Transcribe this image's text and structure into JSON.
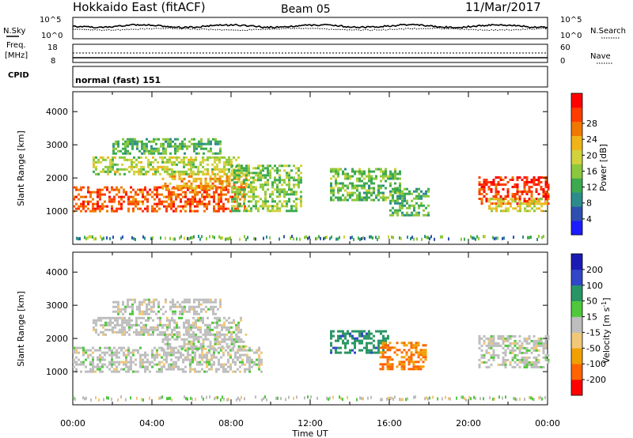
{
  "header": {
    "station": "Hokkaido East (fitACF)",
    "beam": "Beam 05",
    "date": "11/Mar/2017"
  },
  "noise_panel": {
    "left_label": "N.Sky",
    "right_label": "N.Search",
    "left_ticks": [
      "10^5",
      "10^0"
    ],
    "right_ticks": [
      "10^5",
      "10^0"
    ]
  },
  "freq_panel": {
    "label_line1": "Freq.",
    "label_line2": "[MHz]",
    "left_ticks": [
      "18",
      "8"
    ],
    "right_ticks": [
      "60",
      "0"
    ],
    "right_label": "Nave"
  },
  "cpid_panel": {
    "label": "CPID",
    "mode_text": "normal (fast) 151"
  },
  "chart_data": [
    {
      "type": "heatmap",
      "title": "",
      "quantity": "Power",
      "ylabel": "Slant Range [km]",
      "ylim": [
        0,
        4600
      ],
      "yticks": [
        1000,
        2000,
        3000,
        4000
      ],
      "x_range_hours": [
        0,
        24
      ],
      "colorbar": {
        "label": "Power [dB]",
        "range": [
          0,
          32
        ],
        "tick_labels": [
          "4",
          "8",
          "12",
          "16",
          "20",
          "24",
          "28"
        ],
        "colors": [
          "#1b1bff",
          "#2f4fb0",
          "#2c8c8c",
          "#3caa50",
          "#8cc83c",
          "#d2d23c",
          "#f0b418",
          "#f07800",
          "#ff3c00",
          "#ff0000"
        ]
      },
      "echo_regions": [
        {
          "t": [
            0.0,
            8.7
          ],
          "r": [
            1000,
            1750
          ],
          "level": 26
        },
        {
          "t": [
            4.5,
            8.8
          ],
          "r": [
            1650,
            2150
          ],
          "level": 22
        },
        {
          "t": [
            1.0,
            8.5
          ],
          "r": [
            2100,
            2650
          ],
          "level": 16
        },
        {
          "t": [
            2.0,
            7.5
          ],
          "r": [
            2700,
            3200
          ],
          "level": 12
        },
        {
          "t": [
            8.0,
            11.5
          ],
          "r": [
            1000,
            2400
          ],
          "level": 14
        },
        {
          "t": [
            13.0,
            16.5
          ],
          "r": [
            1300,
            2300
          ],
          "level": 13
        },
        {
          "t": [
            16.0,
            18.0
          ],
          "r": [
            900,
            1700
          ],
          "level": 12
        },
        {
          "t": [
            20.5,
            24.0
          ],
          "r": [
            1200,
            2050
          ],
          "level": 28
        },
        {
          "t": [
            21.0,
            24.0
          ],
          "r": [
            1000,
            1400
          ],
          "level": 18
        }
      ]
    },
    {
      "type": "heatmap",
      "title": "",
      "quantity": "Velocity",
      "ylabel": "Slant Range [km]",
      "ylim": [
        0,
        4600
      ],
      "yticks": [
        1000,
        2000,
        3000,
        4000
      ],
      "x_range_hours": [
        0,
        24
      ],
      "xlabel": "Time UT",
      "xtick_labels": [
        "00:00",
        "04:00",
        "08:00",
        "12:00",
        "16:00",
        "20:00",
        "00:00"
      ],
      "colorbar": {
        "label": "Velocity [m s-1]",
        "tick_labels": [
          "200",
          "100",
          "50",
          "15",
          "-15",
          "-50",
          "-100",
          "-200"
        ],
        "colors": [
          "#1b1bb4",
          "#3246c8",
          "#289664",
          "#50c83c",
          "#bebebe",
          "#f0c878",
          "#f0a000",
          "#ff6400",
          "#ff0000"
        ]
      },
      "echo_regions": [
        {
          "t": [
            0.0,
            9.5
          ],
          "r": [
            1000,
            1750
          ],
          "level": 0
        },
        {
          "t": [
            4.5,
            8.8
          ],
          "r": [
            1650,
            2150
          ],
          "level": 0
        },
        {
          "t": [
            1.0,
            8.5
          ],
          "r": [
            2100,
            2650
          ],
          "level": 0
        },
        {
          "t": [
            2.0,
            7.5
          ],
          "r": [
            2700,
            3200
          ],
          "level": 0
        },
        {
          "t": [
            13.0,
            16.0
          ],
          "r": [
            1600,
            2250
          ],
          "level": 60
        },
        {
          "t": [
            15.5,
            17.8
          ],
          "r": [
            1100,
            1900
          ],
          "level": -80
        },
        {
          "t": [
            20.5,
            24.0
          ],
          "r": [
            1100,
            2100
          ],
          "level": 0
        }
      ]
    }
  ]
}
